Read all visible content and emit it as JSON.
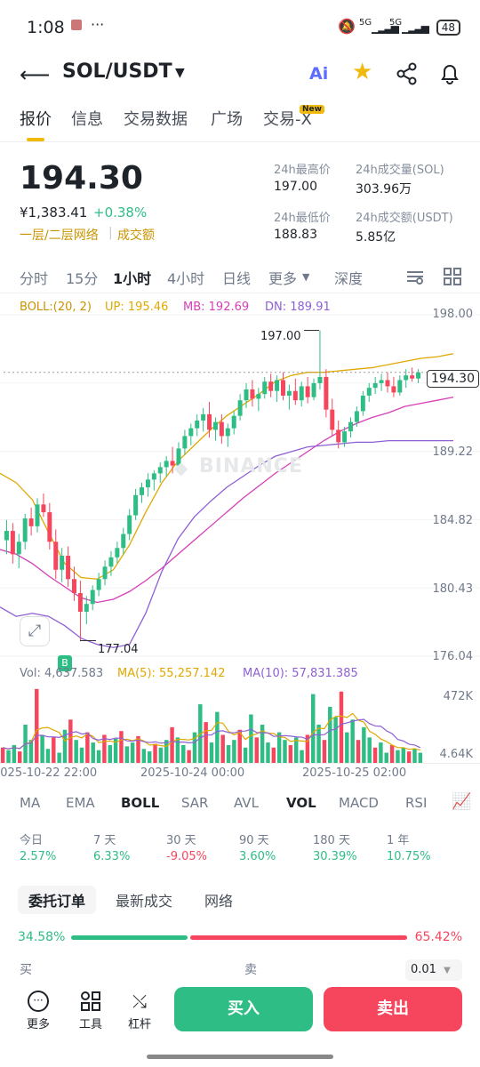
{
  "status": {
    "time": "1:08",
    "battery": "48",
    "net1": "5G",
    "net2": "5G"
  },
  "header": {
    "pair": "SOL/USDT"
  },
  "tabs": [
    {
      "label": "报价"
    },
    {
      "label": "信息"
    },
    {
      "label": "交易数据"
    },
    {
      "label": "广场"
    },
    {
      "label": "交易-X"
    }
  ],
  "new_badge": "New",
  "ticker": {
    "price": "194.30",
    "cny": "¥1,383.41",
    "change": "+0.38%",
    "tags": "一层/二层网络",
    "tag2": "成交额",
    "high_label": "24h最高价",
    "high": "197.00",
    "low_label": "24h最低价",
    "low": "188.83",
    "vol_label": "24h成交量(SOL)",
    "vol": "303.96万",
    "amt_label": "24h成交额(USDT)",
    "amt": "5.85亿"
  },
  "intervals": [
    "分时",
    "15分",
    "1小时",
    "4小时",
    "日线",
    "更多",
    "深度"
  ],
  "boll": {
    "label": "BOLL:(20, 2)",
    "up": "UP: 195.46",
    "mb": "MB: 192.69",
    "dn": "DN: 189.91"
  },
  "chart_data": {
    "type": "candlestick",
    "yticks": [
      "198.00",
      "193.61",
      "189.22",
      "184.82",
      "180.43",
      "176.04"
    ],
    "last_price": "194.30",
    "high_marker": "197.00",
    "low_marker": "177.04",
    "watermark": "BINANCE",
    "buy_marker": "B",
    "xticks": [
      "2025-10-22 22:00",
      "2025-10-24 00:00",
      "2025-10-25 02:00"
    ],
    "up_color": "#2ebd85",
    "down_color": "#f6465d",
    "candles": [
      [
        183.5,
        184.8,
        182.6,
        184.1
      ],
      [
        184.1,
        184.6,
        182.0,
        182.6
      ],
      [
        182.6,
        183.9,
        181.7,
        183.4
      ],
      [
        183.4,
        185.2,
        182.9,
        184.9
      ],
      [
        184.9,
        185.6,
        183.8,
        184.4
      ],
      [
        184.4,
        186.2,
        184.0,
        185.8
      ],
      [
        185.8,
        186.5,
        185.0,
        185.3
      ],
      [
        185.3,
        185.9,
        182.9,
        183.4
      ],
      [
        183.4,
        184.2,
        181.0,
        181.6
      ],
      [
        181.6,
        183.0,
        180.8,
        182.5
      ],
      [
        182.5,
        183.1,
        180.5,
        181.0
      ],
      [
        181.0,
        181.8,
        179.6,
        180.1
      ],
      [
        180.1,
        180.9,
        177.0,
        178.9
      ],
      [
        178.9,
        179.9,
        178.1,
        179.4
      ],
      [
        179.4,
        180.6,
        179.0,
        180.3
      ],
      [
        180.3,
        181.4,
        179.9,
        181.0
      ],
      [
        181.0,
        182.2,
        180.6,
        181.8
      ],
      [
        181.8,
        182.8,
        181.2,
        182.4
      ],
      [
        182.4,
        183.4,
        182.0,
        183.0
      ],
      [
        183.0,
        184.3,
        182.6,
        183.9
      ],
      [
        183.9,
        185.5,
        183.5,
        185.1
      ],
      [
        185.1,
        186.8,
        184.8,
        186.4
      ],
      [
        186.4,
        187.2,
        185.9,
        186.9
      ],
      [
        186.9,
        187.8,
        186.3,
        187.4
      ],
      [
        187.4,
        188.0,
        186.7,
        187.8
      ],
      [
        187.8,
        188.5,
        187.2,
        188.2
      ],
      [
        188.2,
        188.9,
        187.6,
        188.6
      ],
      [
        188.6,
        189.5,
        187.8,
        188.3
      ],
      [
        188.3,
        189.8,
        188.0,
        189.4
      ],
      [
        189.4,
        190.6,
        189.0,
        190.2
      ],
      [
        190.2,
        191.0,
        189.6,
        190.7
      ],
      [
        190.7,
        191.6,
        190.2,
        191.2
      ],
      [
        191.2,
        192.0,
        190.5,
        191.6
      ],
      [
        191.6,
        192.4,
        190.1,
        190.6
      ],
      [
        190.6,
        191.4,
        189.9,
        191.1
      ],
      [
        191.1,
        191.6,
        189.7,
        190.2
      ],
      [
        190.2,
        191.0,
        189.5,
        190.7
      ],
      [
        190.7,
        191.8,
        190.3,
        191.5
      ],
      [
        191.5,
        192.9,
        191.2,
        192.5
      ],
      [
        192.5,
        193.6,
        192.0,
        193.2
      ],
      [
        193.2,
        193.8,
        192.1,
        192.6
      ],
      [
        192.6,
        193.3,
        191.8,
        192.9
      ],
      [
        192.9,
        194.0,
        192.6,
        193.7
      ],
      [
        193.7,
        194.2,
        192.7,
        193.1
      ],
      [
        193.1,
        194.1,
        192.4,
        193.8
      ],
      [
        193.8,
        194.3,
        192.5,
        192.8
      ],
      [
        192.8,
        193.5,
        191.9,
        193.1
      ],
      [
        193.1,
        193.9,
        192.2,
        192.5
      ],
      [
        192.5,
        193.7,
        192.1,
        193.4
      ],
      [
        193.4,
        194.0,
        192.3,
        192.7
      ],
      [
        192.7,
        193.9,
        192.5,
        193.6
      ],
      [
        193.6,
        197.0,
        193.2,
        194.0
      ],
      [
        194.0,
        194.5,
        191.4,
        191.9
      ],
      [
        191.9,
        192.6,
        190.2,
        190.6
      ],
      [
        190.6,
        191.2,
        189.4,
        189.8
      ],
      [
        189.8,
        190.8,
        189.5,
        190.5
      ],
      [
        190.5,
        191.4,
        190.1,
        191.1
      ],
      [
        191.1,
        192.1,
        190.8,
        191.8
      ],
      [
        191.8,
        193.1,
        191.5,
        192.8
      ],
      [
        192.8,
        193.6,
        192.4,
        193.3
      ],
      [
        193.3,
        194.0,
        192.9,
        193.6
      ],
      [
        193.6,
        194.2,
        193.1,
        193.8
      ],
      [
        193.8,
        194.3,
        193.0,
        193.4
      ],
      [
        193.4,
        194.0,
        192.7,
        193.0
      ],
      [
        193.0,
        194.1,
        192.8,
        193.8
      ],
      [
        193.8,
        194.5,
        193.3,
        194.1
      ],
      [
        194.1,
        194.6,
        193.7,
        193.9
      ],
      [
        193.9,
        194.5,
        193.6,
        194.3
      ]
    ],
    "boll_up": [
      187.8,
      187.2,
      186.1,
      184.0,
      182.0,
      181.1,
      181.0,
      181.6,
      183.2,
      185.3,
      187.2,
      188.6,
      189.6,
      190.6,
      191.5,
      192.2,
      192.9,
      193.7,
      194.1,
      194.3,
      194.3,
      194.4,
      194.5,
      194.6,
      194.8,
      195.0,
      195.2,
      195.3,
      195.5
    ],
    "boll_mb": [
      182.9,
      182.6,
      182.0,
      181.2,
      180.5,
      179.8,
      179.5,
      179.7,
      180.2,
      180.9,
      181.7,
      182.6,
      183.5,
      184.4,
      185.3,
      186.2,
      187.0,
      187.8,
      188.5,
      189.2,
      189.9,
      190.5,
      191.0,
      191.4,
      191.7,
      192.1,
      192.3,
      192.5,
      192.7
    ],
    "boll_dn": [
      179.2,
      178.6,
      178.8,
      178.6,
      178.0,
      177.2,
      176.8,
      176.6,
      176.8,
      178.8,
      181.5,
      183.6,
      185.0,
      186.0,
      186.9,
      187.6,
      188.3,
      188.9,
      189.2,
      189.5,
      189.6,
      189.7,
      189.8,
      189.8,
      189.9,
      189.9,
      189.9,
      189.9,
      189.9
    ]
  },
  "volume": {
    "vol": "Vol: 4,637.583",
    "ma5": "MA(5): 55,257.142",
    "ma10": "MA(10): 57,831.385",
    "ytop": "472K",
    "ybot": "4.64K",
    "values": [
      12,
      10,
      14,
      9,
      30,
      18,
      58,
      22,
      11,
      20,
      8,
      26,
      34,
      18,
      12,
      24,
      16,
      10,
      22,
      14,
      19,
      25,
      13,
      16,
      21,
      11,
      9,
      15,
      12,
      18,
      28,
      20,
      14,
      10,
      24,
      46,
      32,
      16,
      40,
      22,
      14,
      18,
      26,
      12,
      38,
      20,
      30,
      16,
      12,
      24,
      18,
      14,
      20,
      10,
      22,
      54,
      30,
      18,
      44,
      36,
      56,
      24,
      34,
      18,
      28,
      20,
      12,
      16,
      8,
      14,
      10,
      12,
      9,
      11,
      8
    ]
  },
  "indicators": [
    "MA",
    "EMA",
    "BOLL",
    "SAR",
    "AVL",
    "VOL",
    "MACD",
    "RSI"
  ],
  "performance": [
    {
      "label": "今日",
      "value": "2.57%"
    },
    {
      "label": "7 天",
      "value": "6.33%"
    },
    {
      "label": "30 天",
      "value": "-9.05%"
    },
    {
      "label": "90 天",
      "value": "3.60%"
    },
    {
      "label": "180 天",
      "value": "30.39%"
    },
    {
      "label": "1 年",
      "value": "10.75%"
    }
  ],
  "orderbook": {
    "tabs": [
      "委托订单",
      "最新成交",
      "网络"
    ],
    "buy_pct": "34.58%",
    "sell_pct": "65.42%",
    "buy_ratio": 0.3458,
    "buy_label": "买",
    "sell_label": "卖",
    "precision": "0.01"
  },
  "bottom": {
    "more": "更多",
    "tools": "工具",
    "leverage": "杠杆",
    "buy": "买入",
    "sell": "卖出"
  }
}
